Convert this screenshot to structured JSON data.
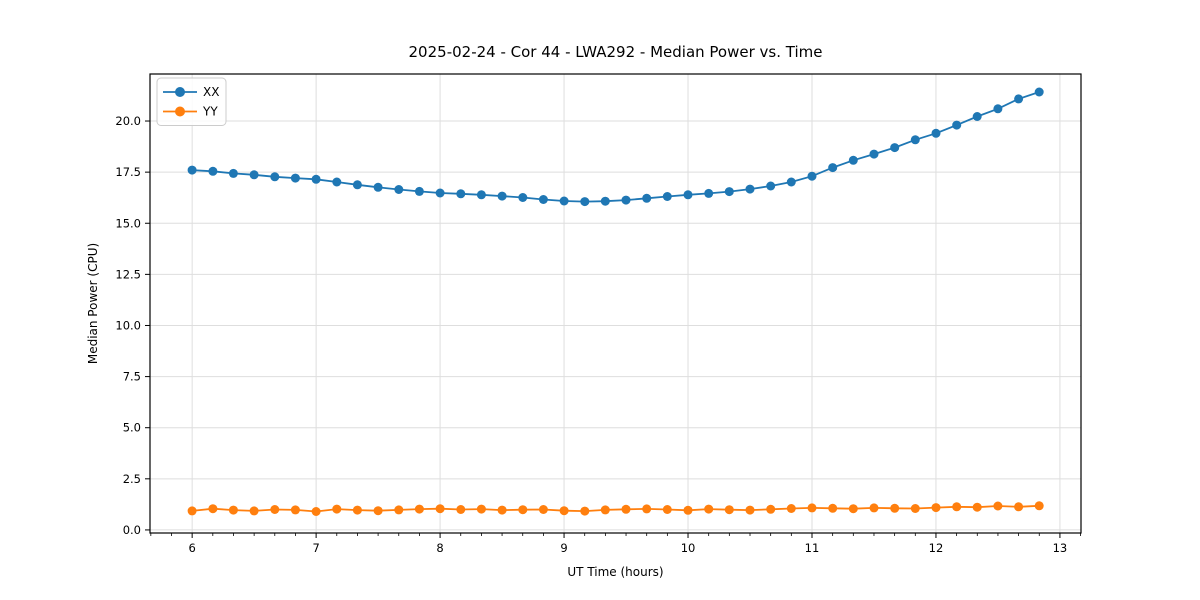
{
  "chart_data": {
    "type": "line",
    "title": "2025-02-24 - Cor 44 - LWA292 - Median Power vs. Time",
    "xlabel": "UT Time (hours)",
    "ylabel": "Median Power (CPU)",
    "xlim": [
      5.66,
      13.17
    ],
    "ylim": [
      -0.15,
      22.3
    ],
    "grid": true,
    "legend_position": "upper-left",
    "x_ticks": {
      "values": [
        6,
        7,
        8,
        9,
        10,
        11,
        12,
        13
      ],
      "labels": [
        "6",
        "7",
        "8",
        "9",
        "10",
        "11",
        "12",
        "13"
      ]
    },
    "x_minor_step": 0.1666667,
    "y_ticks": {
      "values": [
        0,
        2.5,
        5,
        7.5,
        10,
        12.5,
        15,
        17.5,
        20
      ],
      "labels": [
        "0.0",
        "2.5",
        "5.0",
        "7.5",
        "10.0",
        "12.5",
        "15.0",
        "17.5",
        "20.0"
      ]
    },
    "x": [
      6.0,
      6.167,
      6.333,
      6.5,
      6.667,
      6.833,
      7.0,
      7.167,
      7.333,
      7.5,
      7.667,
      7.833,
      8.0,
      8.167,
      8.333,
      8.5,
      8.667,
      8.833,
      9.0,
      9.167,
      9.333,
      9.5,
      9.667,
      9.833,
      10.0,
      10.167,
      10.333,
      10.5,
      10.667,
      10.833,
      11.0,
      11.167,
      11.333,
      11.5,
      11.667,
      11.833,
      12.0,
      12.167,
      12.333,
      12.5,
      12.667,
      12.833
    ],
    "series": [
      {
        "name": "XX",
        "color": "#1f77b4",
        "values": [
          17.6,
          17.54,
          17.44,
          17.37,
          17.27,
          17.21,
          17.15,
          17.02,
          16.88,
          16.76,
          16.65,
          16.56,
          16.48,
          16.44,
          16.39,
          16.33,
          16.26,
          16.16,
          16.09,
          16.06,
          16.08,
          16.13,
          16.22,
          16.31,
          16.39,
          16.46,
          16.55,
          16.67,
          16.82,
          17.02,
          17.3,
          17.72,
          18.08,
          18.38,
          18.7,
          19.08,
          19.4,
          19.8,
          20.22,
          20.6,
          21.08,
          21.42
        ]
      },
      {
        "name": "YY",
        "color": "#ff7f0e",
        "values": [
          0.93,
          1.04,
          0.97,
          0.93,
          1.0,
          0.98,
          0.9,
          1.02,
          0.97,
          0.94,
          0.98,
          1.02,
          1.04,
          1.0,
          1.02,
          0.97,
          0.99,
          1.0,
          0.94,
          0.92,
          0.98,
          1.01,
          1.03,
          1.0,
          0.96,
          1.02,
          0.99,
          0.97,
          1.01,
          1.05,
          1.08,
          1.06,
          1.04,
          1.08,
          1.06,
          1.05,
          1.09,
          1.13,
          1.11,
          1.17,
          1.13,
          1.18
        ]
      }
    ],
    "style": {
      "grid_color": "#dedede",
      "spine_color": "#000000",
      "legend_border_color": "#cccccc",
      "marker_radius": 4.5,
      "line_width": 1.8
    }
  }
}
